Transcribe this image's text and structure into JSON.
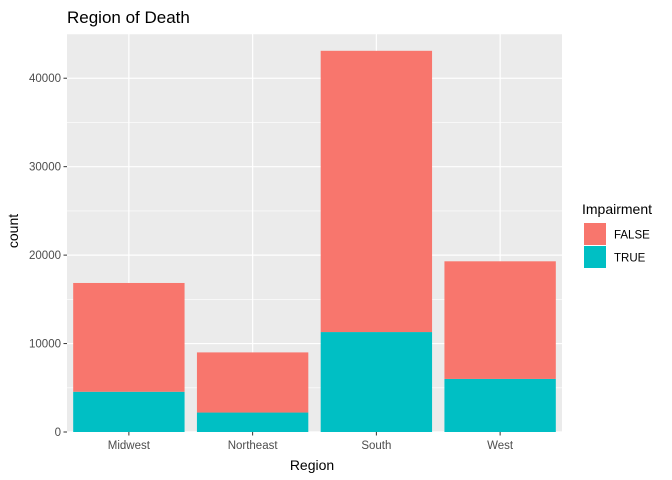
{
  "chart_data": {
    "type": "bar",
    "stacked": true,
    "title": "Region of Death",
    "xlabel": "Region",
    "ylabel": "count",
    "categories": [
      "Midwest",
      "Northeast",
      "South",
      "West"
    ],
    "series": [
      {
        "name": "FALSE",
        "color": "#F8766D",
        "values": [
          12300,
          6800,
          31800,
          13300
        ]
      },
      {
        "name": "TRUE",
        "color": "#00BFC4",
        "values": [
          4550,
          2200,
          11300,
          6000
        ]
      }
    ],
    "ylim": [
      0,
      45000
    ],
    "yticks": [
      0,
      10000,
      20000,
      30000,
      40000
    ],
    "ytick_labels": [
      "0",
      "10000",
      "20000",
      "30000",
      "40000"
    ],
    "grid": true,
    "background": "#EBEBEB",
    "legend": {
      "title": "Impairment",
      "placement": "right"
    }
  }
}
